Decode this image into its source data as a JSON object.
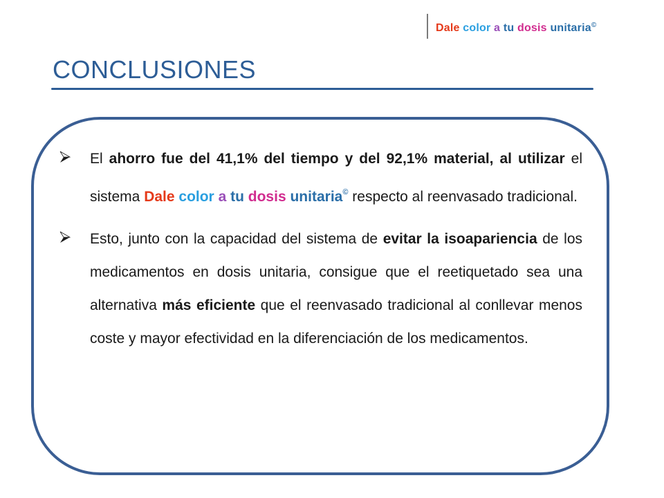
{
  "header": {
    "brand": {
      "words": [
        {
          "text": "Dale",
          "color": "#e53a1a"
        },
        {
          "text": "color",
          "color": "#2a9fe0"
        },
        {
          "text": "a",
          "color": "#9a4fb8"
        },
        {
          "text": "tu",
          "color": "#2a6ea8"
        },
        {
          "text": "dosis",
          "color": "#d12c8f"
        },
        {
          "text": "unitaria",
          "color": "#2a6ea8"
        }
      ],
      "copyright": "©"
    }
  },
  "title": "CONCLUSIONES",
  "colors": {
    "title": "#2d5d96",
    "rule": "#2d5d96",
    "panel_border": "#3a5e94",
    "text": "#1a1a1a"
  },
  "bullets": [
    {
      "icon": "arrowhead-bullet-icon",
      "segments": [
        {
          "text": "El "
        },
        {
          "text": "ahorro  fue del 41,1% del tiempo y del 92,1% material, al utilizar",
          "bold": true
        },
        {
          "text": " el sistema "
        },
        {
          "text": "Dale",
          "bold": true,
          "color": "#e53a1a"
        },
        {
          "text": " "
        },
        {
          "text": "color",
          "bold": true,
          "color": "#2a9fe0"
        },
        {
          "text": " "
        },
        {
          "text": "a",
          "bold": true,
          "color": "#9a4fb8"
        },
        {
          "text": " "
        },
        {
          "text": "tu",
          "bold": true,
          "color": "#2a6ea8"
        },
        {
          "text": " "
        },
        {
          "text": "dosis",
          "bold": true,
          "color": "#d12c8f"
        },
        {
          "text": " "
        },
        {
          "text": "unitaria",
          "bold": true,
          "color": "#2a6ea8"
        },
        {
          "text": "©",
          "sup": true,
          "color": "#2a6ea8"
        },
        {
          "text": " respecto al reenvasado tradicional."
        }
      ]
    },
    {
      "icon": "arrowhead-bullet-icon",
      "segments": [
        {
          "text": "Esto, junto con la capacidad del sistema de "
        },
        {
          "text": "evitar la isoapariencia",
          "bold": true
        },
        {
          "text": " de los medicamentos en dosis unitaria, consigue que el reetiquetado sea una alternativa "
        },
        {
          "text": "más eficiente",
          "bold": true
        },
        {
          "text": " que el reenvasado tradicional al conllevar menos coste y mayor efectividad en la diferenciación de los medicamentos."
        }
      ]
    }
  ]
}
